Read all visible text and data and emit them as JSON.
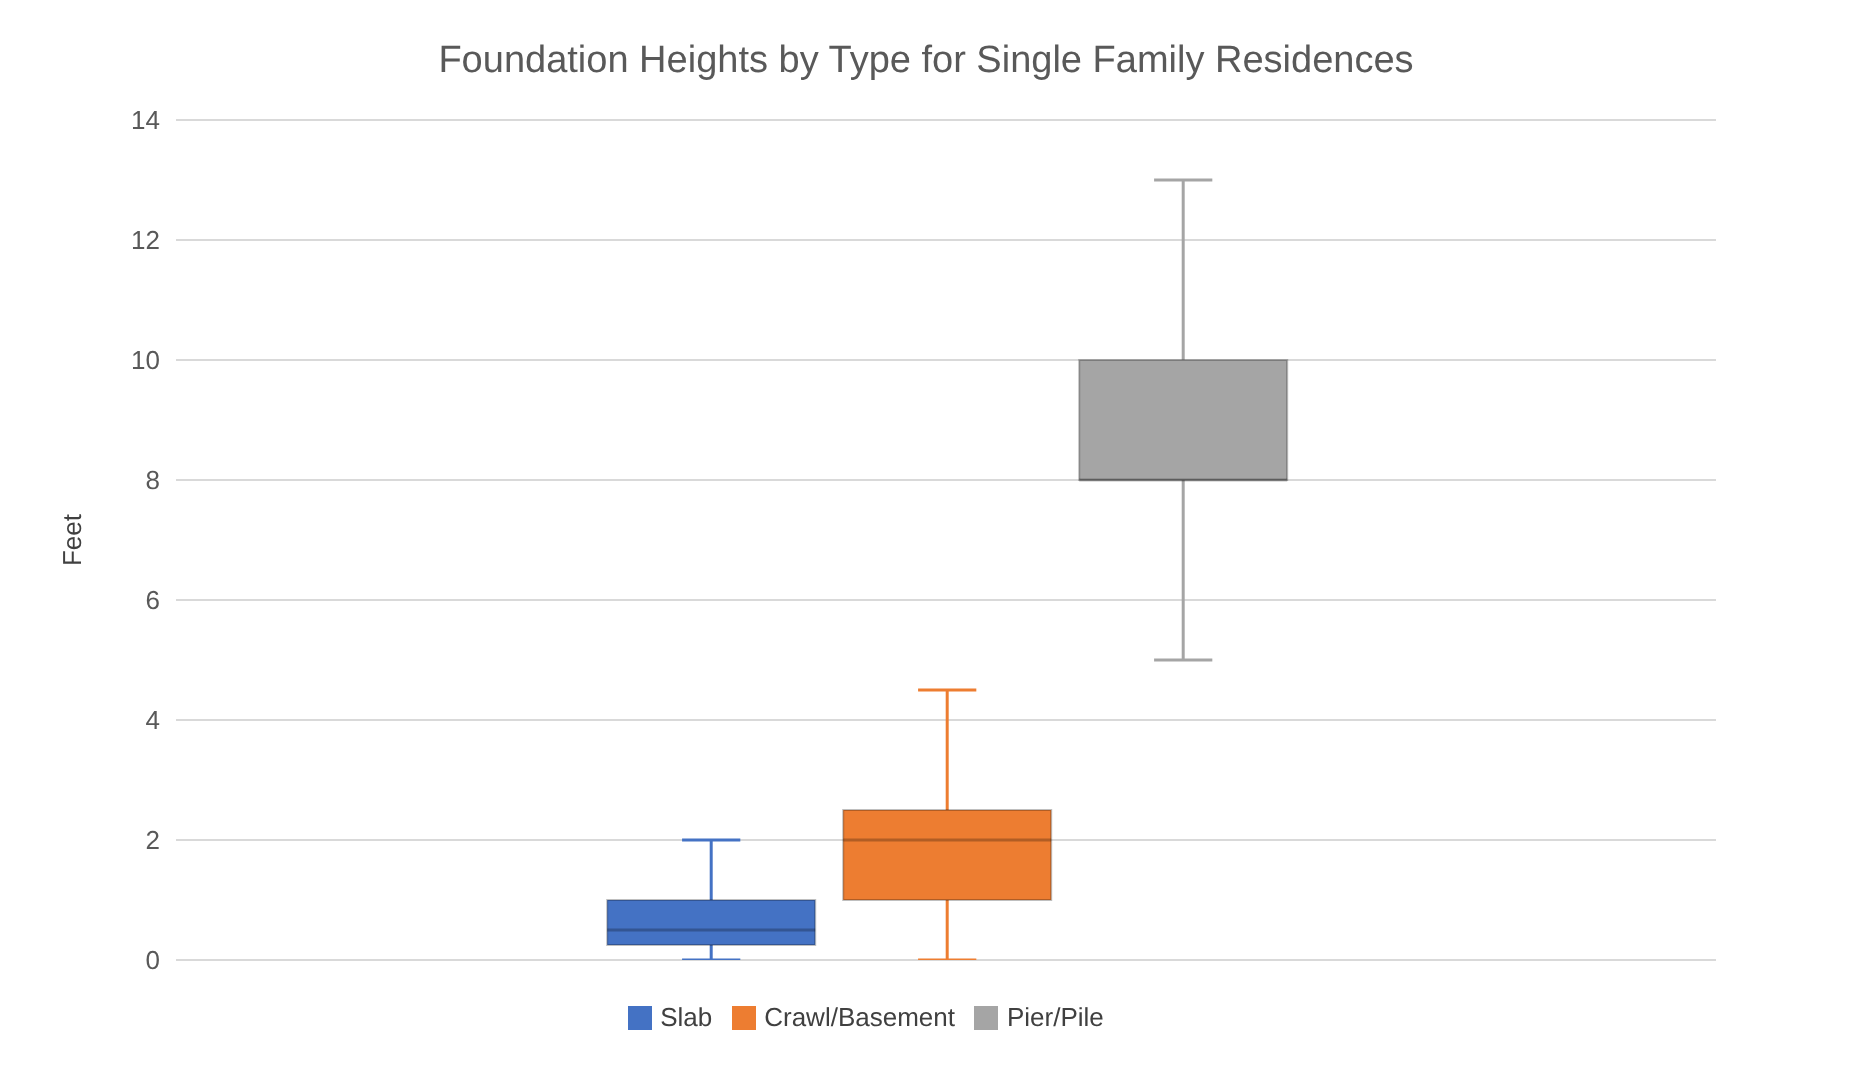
{
  "chart_data": {
    "type": "box",
    "title": "Foundation Heights by Type for Single Family Residences",
    "ylabel": "Feet",
    "categories": [
      null
    ],
    "series": [
      {
        "name": "Slab",
        "color": "#4472c4",
        "boxes": [
          {
            "low": 0,
            "q1": 0.25,
            "median": 0.5,
            "q3": 1,
            "high": 2
          }
        ]
      },
      {
        "name": "Crawl/Basement",
        "color": "#ed7d31",
        "boxes": [
          {
            "low": 0,
            "q1": 1,
            "median": 2,
            "q3": 2.5,
            "high": 4.5
          }
        ]
      },
      {
        "name": "Pier/Pile",
        "color": "#a5a5a5",
        "boxes": [
          {
            "low": 5,
            "q1": 8,
            "median": 8,
            "q3": 10,
            "high": 13
          }
        ]
      }
    ],
    "ylim": [
      0,
      14
    ],
    "yticks": [
      0,
      2,
      4,
      6,
      8,
      10,
      12,
      14
    ],
    "grid": "y",
    "legend": "bottom"
  }
}
